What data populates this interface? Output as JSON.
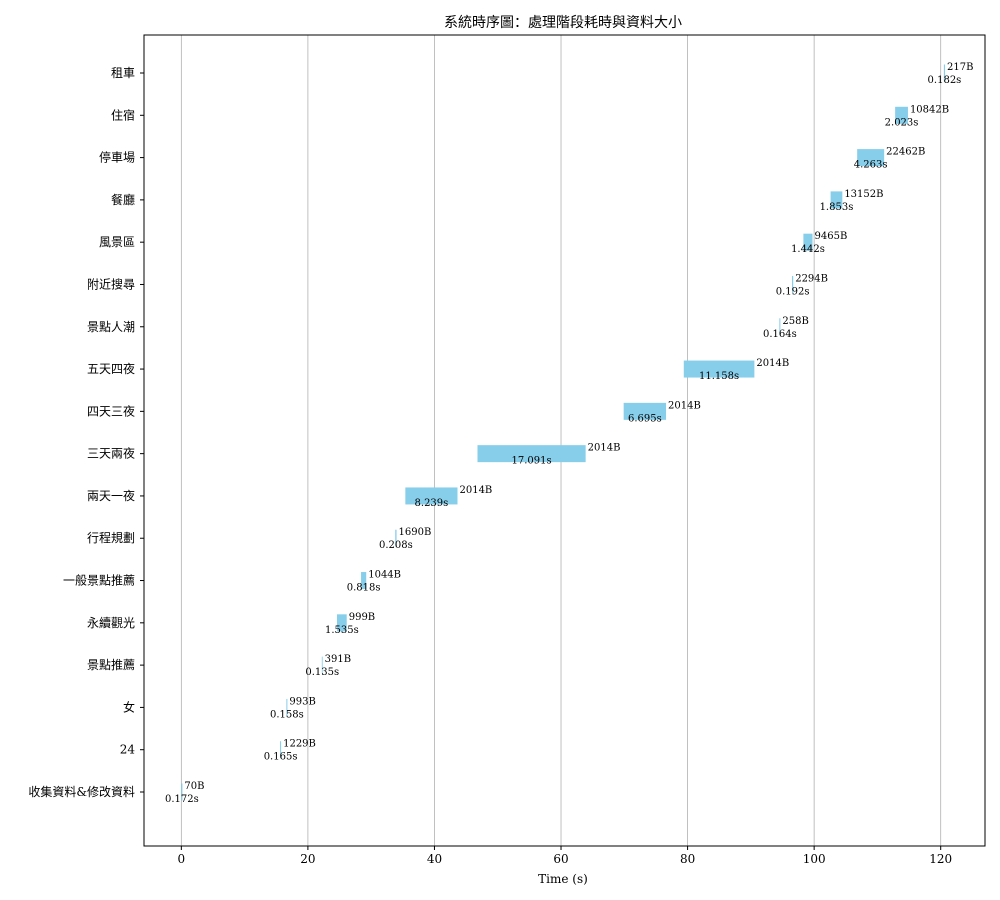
{
  "chart_data": {
    "type": "bar",
    "orientation": "horizontal-timeline",
    "title": "系統時序圖：處理階段耗時與資料大小",
    "xlabel": "Time (s)",
    "ylabel": "",
    "xlim": [
      -5.9,
      127
    ],
    "x_ticks": [
      0,
      20,
      40,
      60,
      80,
      100,
      120
    ],
    "grid": "x",
    "bar_color": "#87ceeb",
    "categories": [
      "收集資料&修改資料",
      "24",
      "女",
      "景點推薦",
      "永續觀光",
      "一般景點推薦",
      "行程規劃",
      "兩天一夜",
      "三天兩夜",
      "四天三夜",
      "五天四夜",
      "景點人潮",
      "附近搜尋",
      "風景區",
      "餐廳",
      "停車場",
      "住宿",
      "租車"
    ],
    "series": [
      {
        "start": [
          0.0,
          15.6,
          16.6,
          22.2,
          24.6,
          28.4,
          33.8,
          35.4,
          46.8,
          69.9,
          79.4,
          94.5,
          96.5,
          98.3,
          102.6,
          106.8,
          112.8,
          120.5
        ],
        "duration": [
          0.172,
          0.165,
          0.158,
          0.135,
          1.535,
          0.818,
          0.208,
          8.239,
          17.091,
          6.695,
          11.158,
          0.164,
          0.192,
          1.442,
          1.853,
          4.263,
          2.023,
          0.182
        ],
        "duration_labels": [
          "0.172s",
          "0.165s",
          "0.158s",
          "0.135s",
          "1.535s",
          "0.818s",
          "0.208s",
          "8.239s",
          "17.091s",
          "6.695s",
          "11.158s",
          "0.164s",
          "0.192s",
          "1.442s",
          "1.853s",
          "4.263s",
          "2.023s",
          "0.182s"
        ],
        "size_labels": [
          "70B",
          "1229B",
          "993B",
          "391B",
          "999B",
          "1044B",
          "1690B",
          "2014B",
          "2014B",
          "2014B",
          "2014B",
          "258B",
          "2294B",
          "9465B",
          "13152B",
          "22462B",
          "10842B",
          "217B"
        ]
      }
    ]
  }
}
